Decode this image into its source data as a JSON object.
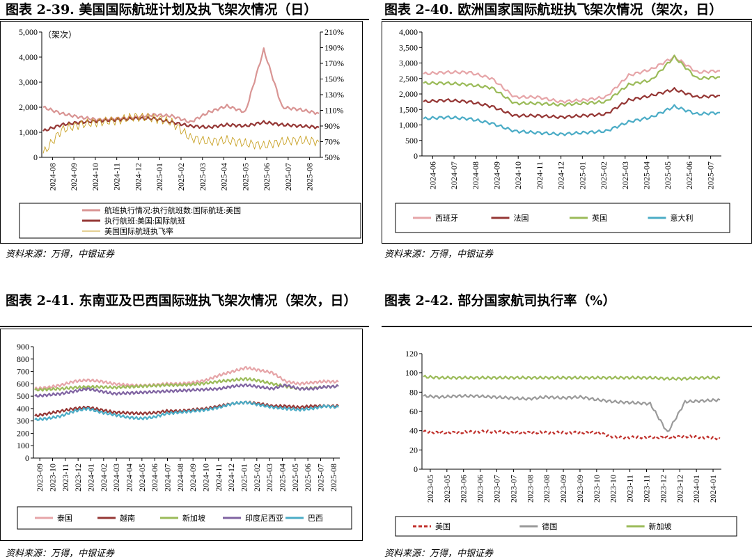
{
  "panels": [
    {
      "title": "图表 2-39. 美国国际航班计划及执飞架次情况（日）",
      "source": "资料来源：万得，中银证券"
    },
    {
      "title": "图表 2-40. 欧洲国家国际航班执飞架次情况（架次，日）",
      "source": "资料来源：万得，中银证券"
    },
    {
      "title": "图表 2-41. 东南亚及巴西国际班执飞架次情况（架次，日）",
      "source": "资料来源：万得，中银证券"
    },
    {
      "title": "图表 2-42. 部分国家航司执行率（%）",
      "source": "资料来源：万得，中银证券"
    }
  ],
  "chart_data": [
    {
      "type": "line",
      "unit_label": "（架次）",
      "y_left_ticks": [
        "0",
        "1,000",
        "2,000",
        "3,000",
        "4,000",
        "5,000"
      ],
      "ylim_left": [
        0,
        5000
      ],
      "y_right_ticks": [
        "50%",
        "70%",
        "90%",
        "110%",
        "130%",
        "150%",
        "170%",
        "190%",
        "210%"
      ],
      "ylim_right": [
        50,
        210
      ],
      "x_ticks": [
        "2024-08",
        "2024-09",
        "2024-10",
        "2024-11",
        "2024-12",
        "2025-01",
        "2025-02",
        "2025-03",
        "2025-04",
        "2025-05",
        "2025-06",
        "2025-07",
        "2025-08"
      ],
      "legend_position": "bottom",
      "series": [
        {
          "name": "航班执行情况:执行航班数:国际航班:美国",
          "color": "#d99594",
          "axis": "left",
          "values": [
            2000,
            1750,
            1600,
            1500,
            1550,
            1600,
            1700,
            1650,
            1400,
            1800,
            2050,
            1800,
            4300,
            2000,
            1900,
            1750
          ]
        },
        {
          "name": "执行航班:美国:国际航班",
          "color": "#953735",
          "axis": "left",
          "values": [
            1050,
            1300,
            1400,
            1450,
            1500,
            1550,
            1550,
            1400,
            1250,
            1200,
            1300,
            1250,
            1400,
            1300,
            1250,
            1200
          ]
        },
        {
          "name": "美国国际航班执飞率",
          "color": "#c9a227",
          "axis": "right",
          "values": [
            55,
            85,
            92,
            95,
            97,
            102,
            100,
            95,
            75,
            70,
            72,
            68,
            65,
            70,
            72,
            70
          ]
        }
      ]
    },
    {
      "type": "line",
      "y_ticks": [
        "0",
        "500",
        "1,000",
        "1,500",
        "2,000",
        "2,500",
        "3,000",
        "3,500",
        "4,000"
      ],
      "ylim": [
        0,
        4000
      ],
      "x_ticks": [
        "2024-06",
        "2024-07",
        "2024-08",
        "2024-09",
        "2024-10",
        "2024-11",
        "2024-12",
        "2025-01",
        "2025-02",
        "2025-03",
        "2025-04",
        "2025-05",
        "2025-06",
        "2025-07"
      ],
      "legend_position": "bottom",
      "series": [
        {
          "name": "西班牙",
          "color": "#e6a5a8",
          "values": [
            2650,
            2700,
            2700,
            2500,
            1900,
            1900,
            1750,
            1800,
            1900,
            2600,
            2800,
            3200,
            2700,
            2750
          ]
        },
        {
          "name": "法国",
          "color": "#953735",
          "values": [
            1750,
            1800,
            1750,
            1600,
            1300,
            1300,
            1250,
            1300,
            1350,
            1800,
            1950,
            2150,
            1900,
            1950
          ]
        },
        {
          "name": "英国",
          "color": "#9bbb59",
          "values": [
            2350,
            2350,
            2300,
            2200,
            1700,
            1700,
            1650,
            1700,
            1750,
            2300,
            2450,
            3200,
            2500,
            2550
          ]
        },
        {
          "name": "意大利",
          "color": "#4bacc6",
          "values": [
            1200,
            1250,
            1200,
            1050,
            800,
            750,
            700,
            750,
            800,
            1100,
            1250,
            1600,
            1350,
            1400
          ]
        }
      ]
    },
    {
      "type": "line",
      "y_ticks": [
        "0",
        "100",
        "200",
        "300",
        "400",
        "500",
        "600",
        "700",
        "800",
        "900"
      ],
      "ylim": [
        0,
        900
      ],
      "x_ticks": [
        "2023-09",
        "2023-10",
        "2023-11",
        "2023-12",
        "2024-01",
        "2024-02",
        "2024-03",
        "2024-04",
        "2024-05",
        "2024-06",
        "2024-07",
        "2024-08",
        "2024-09",
        "2024-10",
        "2024-11",
        "2024-12",
        "2025-01",
        "2025-02",
        "2025-03",
        "2025-04",
        "2025-05",
        "2025-06",
        "2025-07",
        "2025-08"
      ],
      "legend_position": "bottom",
      "series": [
        {
          "name": "泰国",
          "color": "#e6a5a8",
          "values": [
            560,
            570,
            590,
            620,
            630,
            620,
            600,
            590,
            585,
            590,
            600,
            600,
            610,
            630,
            670,
            700,
            730,
            710,
            690,
            620,
            600,
            610,
            620,
            615
          ]
        },
        {
          "name": "越南",
          "color": "#953735",
          "values": [
            340,
            360,
            380,
            400,
            410,
            390,
            370,
            365,
            360,
            365,
            380,
            380,
            390,
            400,
            420,
            440,
            450,
            440,
            420,
            420,
            410,
            420,
            420,
            420
          ]
        },
        {
          "name": "新加坡",
          "color": "#9bbb59",
          "values": [
            550,
            555,
            560,
            570,
            575,
            575,
            570,
            575,
            580,
            585,
            590,
            590,
            595,
            605,
            620,
            630,
            640,
            625,
            600,
            580,
            560,
            565,
            575,
            580
          ]
        },
        {
          "name": "印度尼西亚",
          "color": "#8064a2",
          "values": [
            500,
            510,
            520,
            540,
            560,
            540,
            520,
            525,
            530,
            535,
            540,
            545,
            550,
            555,
            560,
            580,
            590,
            575,
            560,
            590,
            560,
            560,
            575,
            580
          ]
        },
        {
          "name": "巴西",
          "color": "#4bacc6",
          "values": [
            310,
            320,
            340,
            380,
            400,
            370,
            350,
            330,
            320,
            330,
            360,
            370,
            380,
            390,
            410,
            440,
            450,
            430,
            410,
            400,
            390,
            400,
            420,
            410
          ]
        }
      ]
    },
    {
      "type": "line",
      "y_ticks": [
        "0",
        "20",
        "40",
        "60",
        "80",
        "100",
        "120"
      ],
      "ylim": [
        0,
        120
      ],
      "x_ticks": [
        "2023-05",
        "2023-05",
        "2023-06",
        "2023-06",
        "2023-07",
        "2023-07",
        "2023-08",
        "2023-08",
        "2023-09",
        "2023-09",
        "2023-10",
        "2023-10",
        "2023-11",
        "2023-11",
        "2023-12",
        "2023-12",
        "2024-01",
        "2024-01"
      ],
      "legend_position": "bottom",
      "series": [
        {
          "name": "美国",
          "color": "#c0312c",
          "dashed": true,
          "values": [
            39,
            38,
            38,
            39,
            39,
            38,
            38,
            38,
            38,
            38,
            38,
            33,
            33,
            33,
            33,
            34,
            33,
            32
          ]
        },
        {
          "name": "德国",
          "color": "#9a9a9a",
          "values": [
            76,
            75,
            76,
            76,
            75,
            74,
            73,
            75,
            74,
            75,
            72,
            70,
            69,
            68,
            38,
            70,
            71,
            72
          ]
        },
        {
          "name": "新加坡",
          "color": "#9bbb59",
          "values": [
            96,
            95,
            95,
            95,
            95,
            95,
            95,
            95,
            95,
            95,
            95,
            95,
            95,
            95,
            94,
            94,
            95,
            95
          ]
        }
      ]
    }
  ]
}
